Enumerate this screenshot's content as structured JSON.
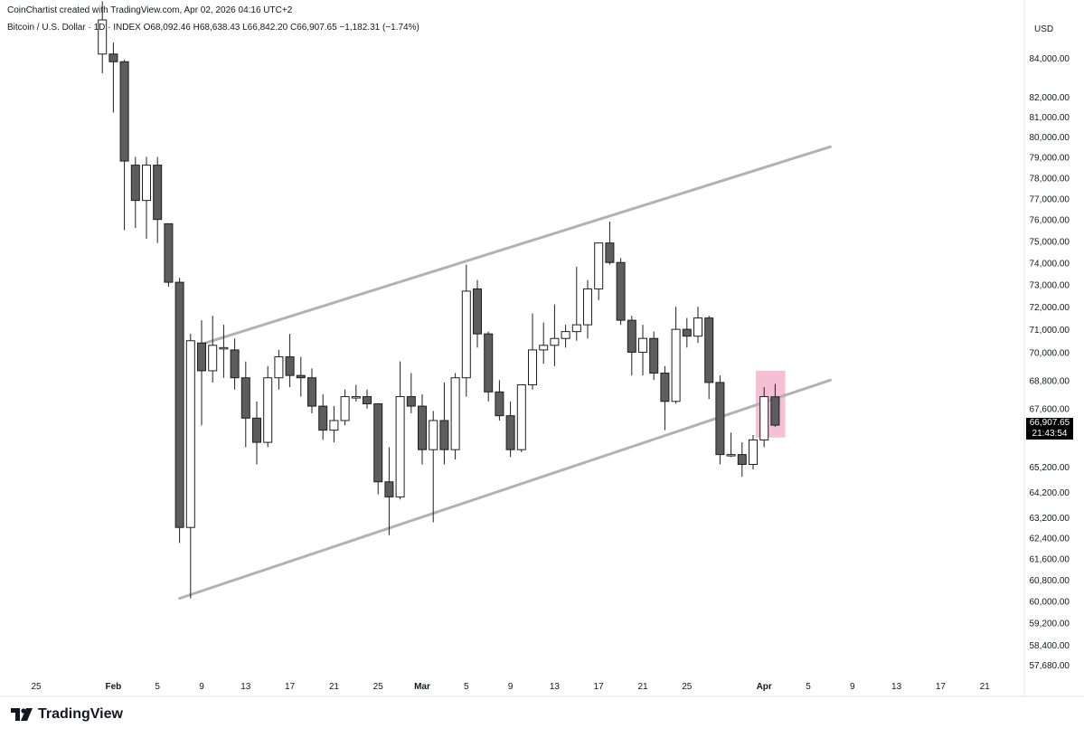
{
  "header": {
    "author_line": "CoinChartist created with TradingView.com, Apr 02, 2026 04:16 UTC+2",
    "symbol_line": "Bitcoin / U.S. Dollar · 1D · INDEX  O68,092.46  H68,638.43  L66,842.20  C66,907.65  −1,182.31 (−1.74%)"
  },
  "axis": {
    "currency": "USD"
  },
  "price_box": {
    "price": "66,907.65",
    "countdown": "21:43:54"
  },
  "footer": {
    "brand": "TradingView",
    "logo_icon": "tradingview-logo-icon"
  },
  "colors": {
    "bear_fill": "#5d5d5d",
    "bull_fill": "#ffffff",
    "candle_border": "#1e1e1e",
    "channel_line": "#b2b2b2",
    "highlight": "#f2aac6"
  },
  "chart_data": {
    "type": "candlestick",
    "title": "",
    "xlabel": "",
    "ylabel": "",
    "ylim": [
      57000,
      86500
    ],
    "y_scale": "log",
    "y_ticks": [
      84000,
      82000,
      81000,
      80000,
      79000,
      78000,
      77000,
      76000,
      75000,
      74000,
      73000,
      72000,
      71000,
      70000,
      68800,
      67600,
      65200,
      64200,
      63200,
      62400,
      61600,
      60800,
      60000,
      59200,
      58400,
      57680
    ],
    "x_ticks": [
      {
        "date": "2026-01-25",
        "label": "25"
      },
      {
        "date": "2026-02-01",
        "label": "Feb"
      },
      {
        "date": "2026-02-05",
        "label": "5"
      },
      {
        "date": "2026-02-09",
        "label": "9"
      },
      {
        "date": "2026-02-13",
        "label": "13"
      },
      {
        "date": "2026-02-17",
        "label": "17"
      },
      {
        "date": "2026-02-21",
        "label": "21"
      },
      {
        "date": "2026-02-25",
        "label": "25"
      },
      {
        "date": "2026-03-01",
        "label": "Mar"
      },
      {
        "date": "2026-03-05",
        "label": "5"
      },
      {
        "date": "2026-03-09",
        "label": "9"
      },
      {
        "date": "2026-03-13",
        "label": "13"
      },
      {
        "date": "2026-03-17",
        "label": "17"
      },
      {
        "date": "2026-03-21",
        "label": "21"
      },
      {
        "date": "2026-03-25",
        "label": "25"
      },
      {
        "date": "2026-04-01",
        "label": "Apr"
      },
      {
        "date": "2026-04-05",
        "label": "5"
      },
      {
        "date": "2026-04-09",
        "label": "9"
      },
      {
        "date": "2026-04-13",
        "label": "13"
      },
      {
        "date": "2026-04-17",
        "label": "17"
      },
      {
        "date": "2026-04-21",
        "label": "21"
      }
    ],
    "candles": [
      {
        "date": "2026-01-31",
        "o": 84200,
        "h": 87000,
        "l": 83200,
        "c": 86000
      },
      {
        "date": "2026-02-01",
        "o": 84200,
        "h": 84800,
        "l": 81200,
        "c": 83800
      },
      {
        "date": "2026-02-02",
        "o": 83800,
        "h": 83900,
        "l": 75500,
        "c": 78800
      },
      {
        "date": "2026-02-03",
        "o": 78600,
        "h": 79000,
        "l": 75600,
        "c": 76900
      },
      {
        "date": "2026-02-04",
        "o": 76900,
        "h": 79000,
        "l": 75100,
        "c": 78600
      },
      {
        "date": "2026-02-05",
        "o": 78600,
        "h": 79000,
        "l": 74900,
        "c": 76000
      },
      {
        "date": "2026-02-06",
        "o": 75800,
        "h": 75800,
        "l": 72900,
        "c": 73100
      },
      {
        "date": "2026-02-07",
        "o": 73100,
        "h": 73300,
        "l": 62200,
        "c": 62800
      },
      {
        "date": "2026-02-08",
        "o": 62800,
        "h": 70800,
        "l": 60100,
        "c": 70500
      },
      {
        "date": "2026-02-09",
        "o": 70400,
        "h": 71400,
        "l": 66900,
        "c": 69200
      },
      {
        "date": "2026-02-10",
        "o": 69200,
        "h": 71600,
        "l": 68700,
        "c": 70300
      },
      {
        "date": "2026-02-11",
        "o": 70200,
        "h": 71200,
        "l": 68900,
        "c": 70200
      },
      {
        "date": "2026-02-12",
        "o": 70100,
        "h": 70600,
        "l": 68400,
        "c": 68900
      },
      {
        "date": "2026-02-13",
        "o": 68900,
        "h": 69600,
        "l": 66000,
        "c": 67200
      },
      {
        "date": "2026-02-14",
        "o": 67200,
        "h": 67900,
        "l": 65300,
        "c": 66200
      },
      {
        "date": "2026-02-15",
        "o": 66200,
        "h": 69400,
        "l": 66000,
        "c": 68900
      },
      {
        "date": "2026-02-16",
        "o": 68900,
        "h": 70100,
        "l": 68400,
        "c": 69800
      },
      {
        "date": "2026-02-17",
        "o": 69800,
        "h": 70800,
        "l": 68500,
        "c": 69000
      },
      {
        "date": "2026-02-18",
        "o": 69000,
        "h": 69800,
        "l": 68100,
        "c": 68900
      },
      {
        "date": "2026-02-19",
        "o": 68900,
        "h": 69300,
        "l": 67400,
        "c": 67700
      },
      {
        "date": "2026-02-20",
        "o": 67700,
        "h": 68200,
        "l": 66300,
        "c": 66700
      },
      {
        "date": "2026-02-21",
        "o": 66700,
        "h": 67700,
        "l": 66200,
        "c": 67100
      },
      {
        "date": "2026-02-22",
        "o": 67100,
        "h": 68400,
        "l": 66900,
        "c": 68100
      },
      {
        "date": "2026-02-23",
        "o": 68100,
        "h": 68600,
        "l": 67900,
        "c": 68100
      },
      {
        "date": "2026-02-24",
        "o": 68100,
        "h": 68400,
        "l": 67600,
        "c": 67800
      },
      {
        "date": "2026-02-25",
        "o": 67800,
        "h": 67800,
        "l": 64100,
        "c": 64600
      },
      {
        "date": "2026-02-26",
        "o": 64600,
        "h": 66000,
        "l": 62500,
        "c": 64000
      },
      {
        "date": "2026-02-27",
        "o": 64000,
        "h": 69600,
        "l": 63900,
        "c": 68100
      },
      {
        "date": "2026-02-28",
        "o": 68100,
        "h": 69100,
        "l": 67400,
        "c": 67700
      },
      {
        "date": "2026-03-01",
        "o": 67700,
        "h": 68200,
        "l": 65300,
        "c": 65900
      },
      {
        "date": "2026-03-02",
        "o": 65900,
        "h": 67500,
        "l": 63000,
        "c": 67100
      },
      {
        "date": "2026-03-03",
        "o": 67100,
        "h": 68700,
        "l": 65300,
        "c": 65900
      },
      {
        "date": "2026-03-04",
        "o": 65900,
        "h": 69100,
        "l": 65500,
        "c": 68900
      },
      {
        "date": "2026-03-05",
        "o": 68900,
        "h": 73900,
        "l": 68100,
        "c": 72700
      },
      {
        "date": "2026-03-06",
        "o": 72800,
        "h": 73200,
        "l": 70200,
        "c": 70800
      },
      {
        "date": "2026-03-07",
        "o": 70800,
        "h": 70900,
        "l": 67900,
        "c": 68300
      },
      {
        "date": "2026-03-08",
        "o": 68300,
        "h": 68800,
        "l": 67100,
        "c": 67300
      },
      {
        "date": "2026-03-09",
        "o": 67300,
        "h": 67900,
        "l": 65600,
        "c": 65900
      },
      {
        "date": "2026-03-10",
        "o": 65900,
        "h": 68400,
        "l": 65800,
        "c": 68600
      },
      {
        "date": "2026-03-11",
        "o": 68600,
        "h": 71700,
        "l": 68400,
        "c": 70100
      },
      {
        "date": "2026-03-12",
        "o": 70100,
        "h": 71300,
        "l": 69500,
        "c": 70300
      },
      {
        "date": "2026-03-13",
        "o": 70300,
        "h": 72100,
        "l": 69400,
        "c": 70600
      },
      {
        "date": "2026-03-14",
        "o": 70600,
        "h": 71200,
        "l": 70200,
        "c": 70900
      },
      {
        "date": "2026-03-15",
        "o": 70900,
        "h": 73800,
        "l": 70500,
        "c": 71200
      },
      {
        "date": "2026-03-16",
        "o": 71200,
        "h": 73200,
        "l": 70600,
        "c": 72800
      },
      {
        "date": "2026-03-17",
        "o": 72800,
        "h": 74900,
        "l": 72300,
        "c": 74900
      },
      {
        "date": "2026-03-18",
        "o": 74900,
        "h": 75900,
        "l": 73900,
        "c": 74000
      },
      {
        "date": "2026-03-19",
        "o": 74000,
        "h": 74200,
        "l": 71200,
        "c": 71400
      },
      {
        "date": "2026-03-20",
        "o": 71400,
        "h": 71600,
        "l": 69000,
        "c": 70000
      },
      {
        "date": "2026-03-21",
        "o": 70000,
        "h": 71200,
        "l": 69000,
        "c": 70600
      },
      {
        "date": "2026-03-22",
        "o": 70600,
        "h": 70900,
        "l": 68800,
        "c": 69100
      },
      {
        "date": "2026-03-23",
        "o": 69100,
        "h": 69400,
        "l": 66700,
        "c": 67900
      },
      {
        "date": "2026-03-24",
        "o": 67900,
        "h": 72000,
        "l": 67800,
        "c": 71000
      },
      {
        "date": "2026-03-25",
        "o": 71000,
        "h": 71500,
        "l": 70200,
        "c": 70700
      },
      {
        "date": "2026-03-26",
        "o": 70700,
        "h": 72000,
        "l": 70400,
        "c": 71500
      },
      {
        "date": "2026-03-27",
        "o": 71500,
        "h": 71600,
        "l": 68000,
        "c": 68700
      },
      {
        "date": "2026-03-28",
        "o": 68700,
        "h": 69000,
        "l": 65300,
        "c": 65700
      },
      {
        "date": "2026-03-29",
        "o": 65700,
        "h": 66600,
        "l": 65600,
        "c": 65700
      },
      {
        "date": "2026-03-30",
        "o": 65700,
        "h": 66200,
        "l": 64800,
        "c": 65300
      },
      {
        "date": "2026-03-31",
        "o": 65300,
        "h": 66500,
        "l": 65100,
        "c": 66300
      },
      {
        "date": "2026-04-01",
        "o": 66300,
        "h": 68500,
        "l": 66000,
        "c": 68100
      },
      {
        "date": "2026-04-02",
        "o": 68092.46,
        "h": 68638.43,
        "l": 66842.2,
        "c": 66907.65
      }
    ],
    "channel_lines": [
      {
        "name": "upper",
        "points": [
          {
            "date": "2026-02-09",
            "price": 70350
          },
          {
            "date": "2026-04-07",
            "price": 79500
          }
        ]
      },
      {
        "name": "lower",
        "points": [
          {
            "date": "2026-02-07",
            "price": 60100
          },
          {
            "date": "2026-04-07",
            "price": 68800
          }
        ]
      }
    ],
    "highlight_box": {
      "dates": [
        "2026-03-31",
        "2026-04-03"
      ],
      "price_range": [
        66400,
        69200
      ]
    },
    "grid": false,
    "legend": "none"
  }
}
